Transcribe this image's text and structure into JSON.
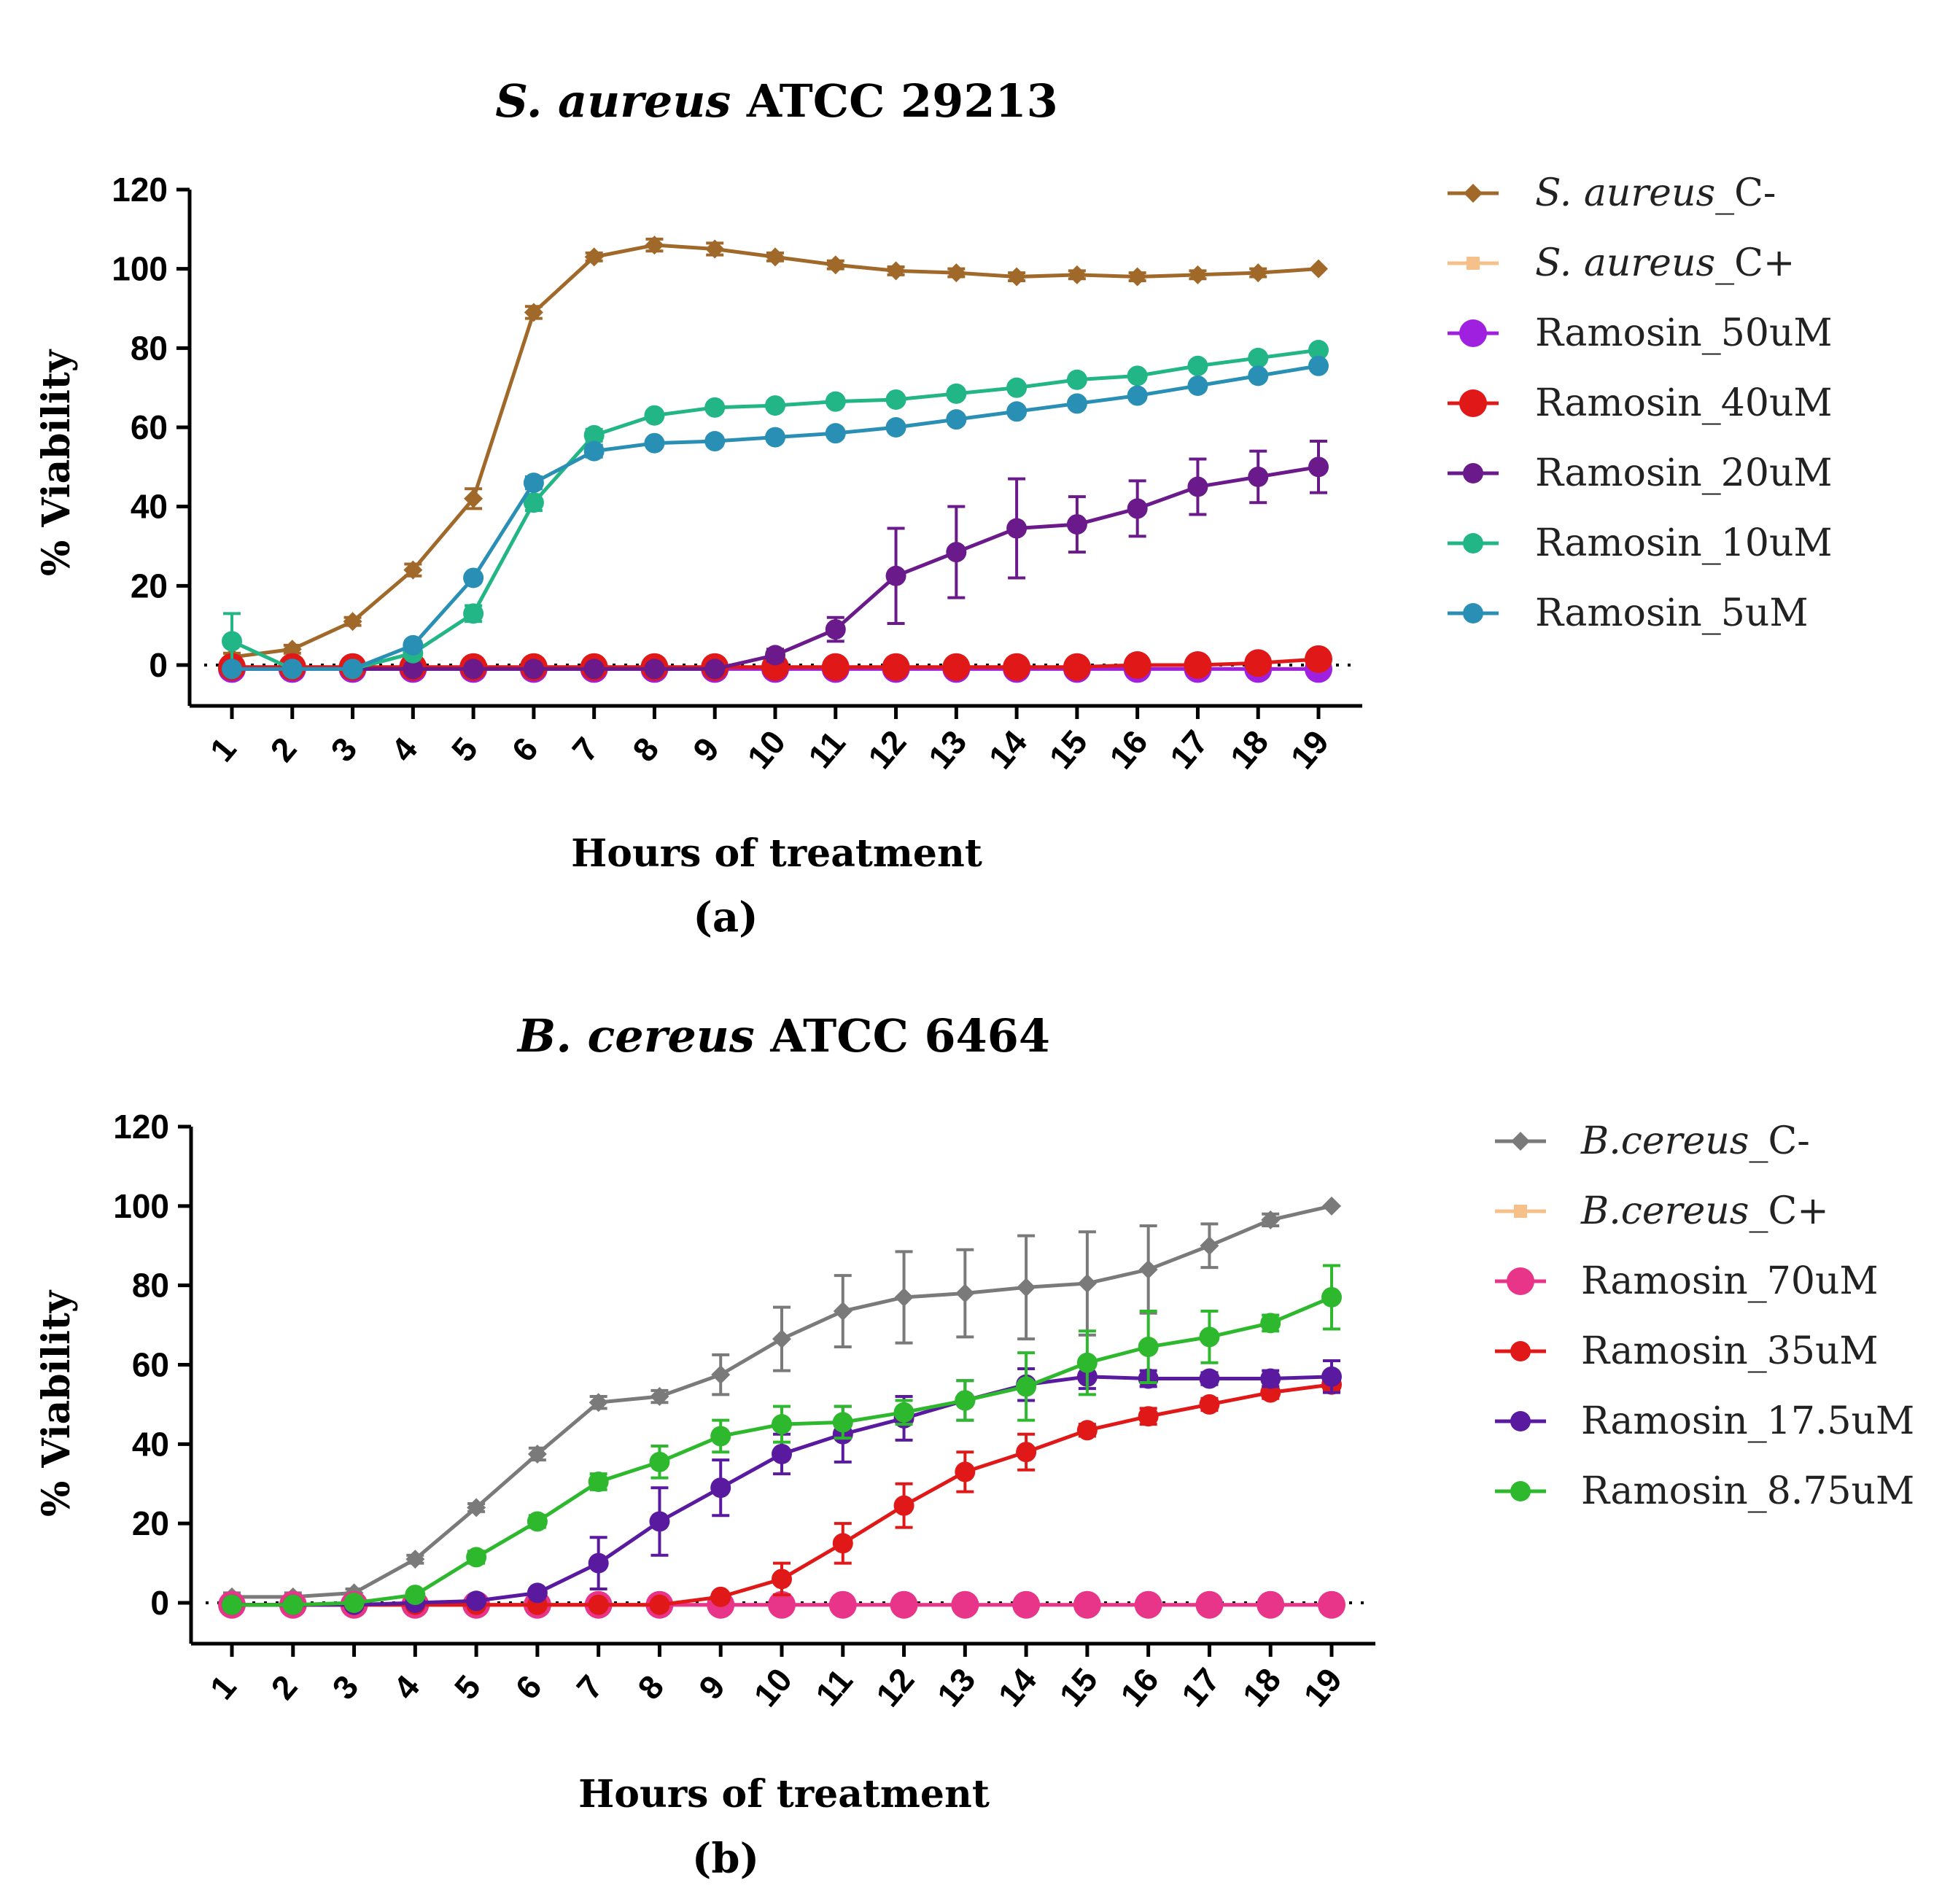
{
  "chart_data": [
    {
      "type": "line",
      "panel": "a",
      "panel_label": "(a)",
      "title_italic": "S. aureus",
      "title_rest": " ATCC 29213",
      "xlabel": "Hours of treatment",
      "ylabel": "% Viability",
      "ylim": [
        -10,
        120
      ],
      "yticks": [
        0,
        20,
        40,
        60,
        80,
        100,
        120
      ],
      "x": [
        1,
        2,
        3,
        4,
        5,
        6,
        7,
        8,
        9,
        10,
        11,
        12,
        13,
        14,
        15,
        16,
        17,
        18,
        19
      ],
      "legend_position": "right",
      "series": [
        {
          "label_italic": "S. aureus",
          "label_rest": "_C-",
          "color": "#a0692a",
          "marker": "diamond",
          "values": [
            2,
            4,
            11,
            24,
            42,
            89,
            103,
            106,
            105,
            103,
            101,
            99.5,
            99,
            98,
            98.5,
            98,
            98.5,
            99,
            100
          ],
          "errors": [
            1,
            1,
            1,
            1.5,
            2.5,
            1.5,
            1,
            1.5,
            1.5,
            1,
            1,
            1,
            1,
            1,
            1,
            1,
            1,
            1,
            0.5
          ]
        },
        {
          "label_italic": "S. aureus",
          "label_rest": "_C+",
          "color": "#f5c08a",
          "marker": "square",
          "values": [
            -1,
            -1,
            -1,
            -1,
            -1,
            -1,
            -1,
            -1,
            -1,
            -1,
            -1,
            -1,
            -1,
            -1,
            -1,
            -1,
            -1,
            -1,
            -1
          ],
          "errors": [
            0.5,
            0.5,
            0.5,
            0.5,
            0.5,
            0.5,
            0.5,
            0.5,
            0.5,
            0.5,
            0.5,
            0.5,
            0.5,
            0.5,
            0.5,
            0.5,
            0.5,
            0.5,
            0.5
          ]
        },
        {
          "label_italic": "",
          "label_rest": "Ramosin_50uM",
          "color": "#a020e0",
          "marker": "circle-lg",
          "values": [
            -1,
            -1,
            -1,
            -1,
            -1,
            -1,
            -1,
            -1,
            -1,
            -1,
            -1,
            -1,
            -1,
            -1,
            -1,
            -1,
            -1,
            -1,
            -1
          ],
          "errors": [
            0.5,
            0.5,
            0.5,
            0.5,
            0.5,
            0.5,
            0.5,
            0.5,
            0.5,
            0.5,
            0.5,
            0.5,
            0.5,
            0.5,
            0.5,
            0.5,
            0.5,
            0.5,
            0.5
          ]
        },
        {
          "label_italic": "",
          "label_rest": "Ramosin_40uM",
          "color": "#e01818",
          "marker": "circle-lg",
          "values": [
            -0.5,
            -0.5,
            -0.5,
            -0.5,
            -0.5,
            -0.5,
            -0.5,
            -0.5,
            -0.5,
            -0.5,
            -0.5,
            -0.5,
            -0.5,
            -0.5,
            -0.5,
            0,
            0,
            0.5,
            1.5
          ],
          "errors": [
            0.5,
            0.5,
            0.5,
            0.5,
            0.5,
            0.5,
            0.5,
            0.5,
            0.5,
            0.5,
            0.5,
            0.5,
            0.5,
            0.5,
            0.5,
            0.5,
            0.5,
            0.5,
            0.5
          ]
        },
        {
          "label_italic": "",
          "label_rest": "Ramosin_20uM",
          "color": "#6a1a8a",
          "marker": "circle",
          "values": [
            -1,
            -1,
            -1,
            -1,
            -1,
            -1,
            -1,
            -1,
            -1,
            2.5,
            9,
            22.5,
            28.5,
            34.5,
            35.5,
            39.5,
            45,
            47.5,
            50
          ],
          "errors": [
            0.5,
            0.5,
            0.5,
            0.5,
            0.5,
            0.5,
            0.5,
            0.5,
            0.5,
            1.5,
            3,
            12,
            11.5,
            12.5,
            7,
            7,
            7,
            6.5,
            6.5
          ]
        },
        {
          "label_italic": "",
          "label_rest": "Ramosin_10uM",
          "color": "#22b585",
          "marker": "circle",
          "values": [
            6,
            -1,
            -1,
            3,
            13,
            41,
            58,
            63,
            65,
            65.5,
            66.5,
            67,
            68.5,
            70,
            72,
            73,
            75.5,
            77.5,
            79.5
          ],
          "errors": [
            7,
            0.5,
            0.5,
            1,
            2,
            2,
            1.5,
            1,
            1,
            1,
            1,
            1,
            1,
            1,
            1,
            1,
            1,
            1,
            1
          ]
        },
        {
          "label_italic": "",
          "label_rest": "Ramosin_5uM",
          "color": "#2a8fb5",
          "marker": "circle",
          "values": [
            -1,
            -1,
            -1,
            5,
            22,
            46,
            54,
            56,
            56.5,
            57.5,
            58.5,
            60,
            62,
            64,
            66,
            68,
            70.5,
            73,
            75.5
          ],
          "errors": [
            0.5,
            0.5,
            0.5,
            1,
            1,
            1.5,
            1.5,
            1,
            1,
            1,
            1,
            1,
            1,
            1,
            1,
            1,
            1,
            1,
            1
          ]
        }
      ]
    },
    {
      "type": "line",
      "panel": "b",
      "panel_label": "(b)",
      "title_italic": "B. cereus",
      "title_rest": " ATCC 6464",
      "xlabel": "Hours of treatment",
      "ylabel": "% Viability",
      "ylim": [
        -10,
        120
      ],
      "yticks": [
        0,
        20,
        40,
        60,
        80,
        100,
        120
      ],
      "x": [
        1,
        2,
        3,
        4,
        5,
        6,
        7,
        8,
        9,
        10,
        11,
        12,
        13,
        14,
        15,
        16,
        17,
        18,
        19
      ],
      "legend_position": "right",
      "series": [
        {
          "label_italic": "B.cereus",
          "label_rest": "_C-",
          "color": "#7a7a7a",
          "marker": "diamond",
          "values": [
            1.5,
            1.5,
            2.5,
            11,
            24,
            37.5,
            50.5,
            52,
            57.5,
            66.5,
            73.5,
            77,
            78,
            79.5,
            80.5,
            84,
            90,
            96.5,
            100
          ],
          "errors": [
            1,
            1,
            1,
            1,
            1,
            1.5,
            1.5,
            1.5,
            5,
            8,
            9,
            11.5,
            11,
            13,
            13,
            11,
            5.5,
            1.5,
            0.5
          ]
        },
        {
          "label_italic": "B.cereus",
          "label_rest": "_C+",
          "color": "#f5c08a",
          "marker": "square",
          "values": [
            -0.5,
            -0.5,
            -0.5,
            -0.5,
            -0.5,
            -0.5,
            -0.5,
            -0.5,
            -0.5,
            -0.5,
            -0.5,
            -0.5,
            -0.5,
            -0.5,
            -0.5,
            -0.5,
            -0.5,
            -0.5,
            -0.5
          ],
          "errors": [
            0.5,
            0.5,
            0.5,
            0.5,
            0.5,
            0.5,
            0.5,
            0.5,
            0.5,
            0.5,
            0.5,
            0.5,
            0.5,
            0.5,
            0.5,
            0.5,
            0.5,
            0.5,
            0.5
          ]
        },
        {
          "label_italic": "",
          "label_rest": "Ramosin_70uM",
          "color": "#e8358a",
          "marker": "circle-lg",
          "values": [
            -0.5,
            -0.5,
            -0.5,
            -0.5,
            -0.5,
            -0.5,
            -0.5,
            -0.5,
            -0.5,
            -0.5,
            -0.5,
            -0.5,
            -0.5,
            -0.5,
            -0.5,
            -0.5,
            -0.5,
            -0.5,
            -0.5
          ],
          "errors": [
            0.5,
            0.5,
            0.5,
            0.5,
            0.5,
            0.5,
            0.5,
            0.5,
            0.5,
            0.5,
            0.5,
            0.5,
            0.5,
            0.5,
            0.5,
            0.5,
            0.5,
            0.5,
            0.5
          ]
        },
        {
          "label_italic": "",
          "label_rest": "Ramosin_35uM",
          "color": "#e01818",
          "marker": "circle",
          "values": [
            -0.5,
            -0.5,
            -0.5,
            -0.5,
            -0.5,
            -0.5,
            -0.5,
            -0.5,
            1.5,
            6,
            15,
            24.5,
            33,
            38,
            43.5,
            47,
            50,
            53,
            55
          ],
          "errors": [
            0.5,
            0.5,
            0.5,
            0.5,
            0.5,
            0.5,
            0.5,
            0.5,
            1,
            4,
            5,
            5.5,
            5,
            4.5,
            1.5,
            2,
            1.5,
            1.5,
            1.5
          ]
        },
        {
          "label_italic": "",
          "label_rest": "Ramosin_17.5uM",
          "color": "#5a1aa0",
          "marker": "circle",
          "values": [
            -0.5,
            -0.5,
            -0.5,
            0,
            0.5,
            2.5,
            10,
            20.5,
            29,
            37.5,
            42.5,
            46.5,
            51,
            55,
            57,
            56.5,
            56.5,
            56.5,
            57
          ],
          "errors": [
            0.5,
            0.5,
            0.5,
            0.5,
            0.5,
            1,
            6.5,
            8.5,
            7,
            5,
            7,
            5.5,
            5,
            4,
            3,
            2,
            1.5,
            2,
            4
          ]
        },
        {
          "label_italic": "",
          "label_rest": "Ramosin_8.75uM",
          "color": "#2eb82e",
          "marker": "circle",
          "values": [
            -0.5,
            -0.5,
            0,
            2,
            11.5,
            20.5,
            30.5,
            35.5,
            42,
            45,
            45.5,
            48,
            51,
            54.5,
            60.5,
            64.5,
            67,
            70.5,
            77
          ],
          "errors": [
            0.5,
            0.5,
            0.5,
            1,
            1.5,
            1.5,
            2,
            4,
            4,
            4.5,
            4,
            3,
            5,
            8.5,
            8,
            9,
            6.5,
            2,
            8
          ]
        }
      ]
    }
  ]
}
